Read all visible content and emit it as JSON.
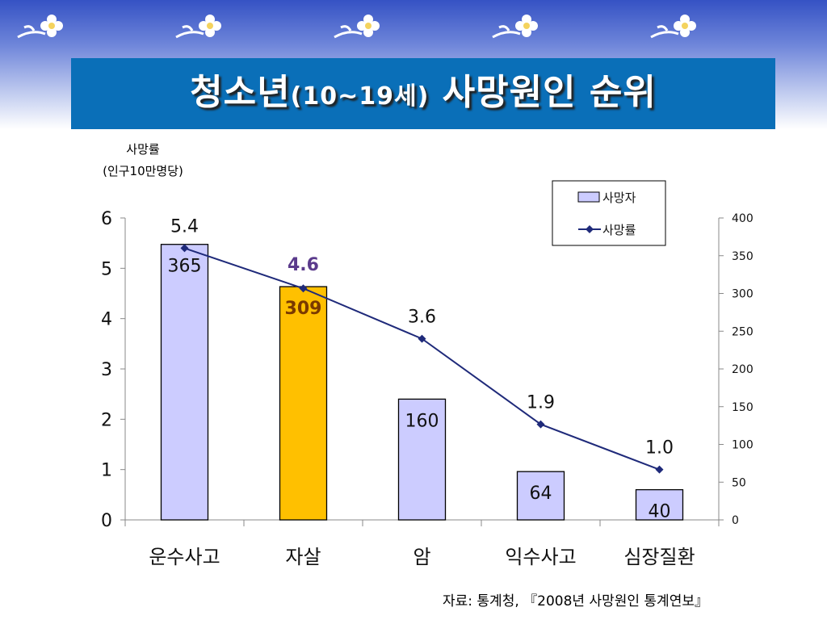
{
  "title": {
    "main": "청소년",
    "paren": "(10~19세)",
    "rest": "사망원인 순위"
  },
  "left_axis_title": [
    "사망률",
    "(인구10만명당)"
  ],
  "source": "자료: 통계청, 『2008년 사망원인 통계연보』",
  "colors": {
    "bar": "#ccccff",
    "highlight": "#ffc000",
    "line": "#1f2a7a",
    "title_band": "#0a6fb8"
  },
  "chart_data": {
    "type": "bar",
    "categories": [
      "운수사고",
      "자살",
      "암",
      "익수사고",
      "심장질환"
    ],
    "series": [
      {
        "name": "사망자",
        "type": "bar",
        "axis": "right",
        "values": [
          365,
          309,
          160,
          64,
          40
        ]
      },
      {
        "name": "사망률",
        "type": "line",
        "axis": "left",
        "values": [
          5.4,
          4.6,
          3.6,
          1.9,
          1.0
        ]
      }
    ],
    "bar_labels": [
      "365",
      "309",
      "160",
      "64",
      "40"
    ],
    "line_labels": [
      "5.4",
      "4.6",
      "3.6",
      "1.9",
      "1.0"
    ],
    "highlight_index": 1,
    "left_axis": {
      "range": [
        0,
        6
      ],
      "ticks": [
        "0",
        "1",
        "2",
        "3",
        "4",
        "5",
        "6"
      ]
    },
    "right_axis": {
      "range": [
        0,
        400
      ],
      "ticks": [
        "0",
        "50",
        "100",
        "150",
        "200",
        "250",
        "300",
        "350",
        "400"
      ]
    },
    "legend": {
      "position": "top-right",
      "entries": [
        "사망자",
        "사망률"
      ]
    },
    "grid": false
  }
}
